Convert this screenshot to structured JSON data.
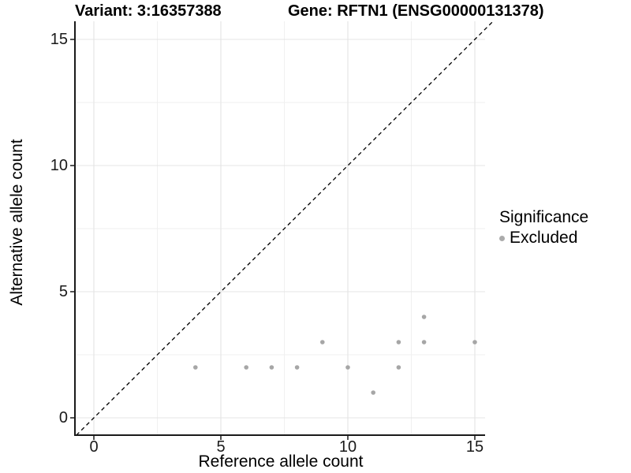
{
  "figure": {
    "title_left": "Variant: 3:16357388",
    "title_right": "Gene: RFTN1 (ENSG00000131378)"
  },
  "chart_data": {
    "type": "scatter",
    "title": "Variant: 3:16357388   Gene: RFTN1 (ENSG00000131378)",
    "xlabel": "Reference allele count",
    "ylabel": "Alternative allele count",
    "xlim": [
      -0.75,
      15.75
    ],
    "ylim": [
      -0.7,
      15.75
    ],
    "x_ticks": [
      0,
      5,
      10,
      15
    ],
    "y_ticks": [
      0,
      5,
      10,
      15
    ],
    "x_tick_labels": [
      "0",
      "5",
      "10",
      "15"
    ],
    "y_tick_labels": [
      "0",
      "5",
      "10",
      "15"
    ],
    "minor_breaks": [
      2.5,
      7.5,
      12.5
    ],
    "grid": true,
    "series": [
      {
        "name": "Excluded",
        "color": "#a6a6a6",
        "points": [
          [
            4,
            2
          ],
          [
            6,
            2
          ],
          [
            7,
            2
          ],
          [
            8,
            2
          ],
          [
            9,
            3
          ],
          [
            10,
            2
          ],
          [
            11,
            1
          ],
          [
            12,
            2
          ],
          [
            12,
            3
          ],
          [
            13,
            3
          ],
          [
            13,
            4
          ],
          [
            15,
            3
          ]
        ]
      }
    ],
    "reference_line": {
      "slope": 1,
      "intercept": 0,
      "style": "dashed",
      "color": "#000000"
    },
    "legend": {
      "title": "Significance",
      "position": "right",
      "items": [
        {
          "label": "Excluded",
          "color": "#ababab"
        }
      ]
    }
  },
  "colors": {
    "background": "#ffffff",
    "grid_major": "#e4e4e4",
    "grid_minor": "#efefef",
    "axis_line": "#1a1a1a",
    "tick_text": "#1a1a1a",
    "point": "#a6a6a6"
  }
}
